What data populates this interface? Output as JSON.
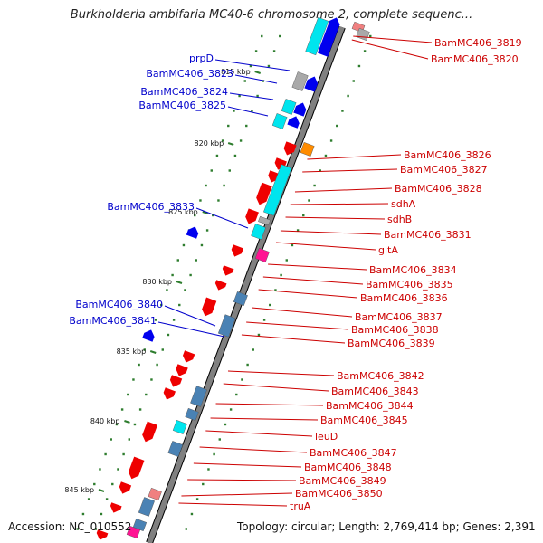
{
  "title": "Burkholderia ambifaria MC40-6 chromosome 2, complete sequenc...",
  "accession": "Accession: NC_010552",
  "topology": "Topology: circular; Length: 2,769,414 bp; Genes: 2,391",
  "colors": {
    "backbone": "#808080",
    "tick": "#2e7d2e",
    "label_left": "#0000cc",
    "label_right": "#cc0000",
    "gene_blue": "#0000ee",
    "gene_red": "#ee0000",
    "gene_cyan": "#00e5ee",
    "gene_steel": "#4a82b4",
    "gene_orange": "#ff8c00",
    "gene_magenta": "#ff1493",
    "gene_grey": "#a9a9a9",
    "gene_pink": "#f08080"
  },
  "kbp_ticks": [
    "815 kbp",
    "820 kbp",
    "825 kbp",
    "830 kbp",
    "835 kbp",
    "840 kbp",
    "845 kbp"
  ],
  "left_labels": [
    "prpD",
    "BamMC406_3823",
    "BamMC406_3824",
    "BamMC406_3825",
    "BamMC406_3833",
    "BamMC406_3840",
    "BamMC406_3841"
  ],
  "right_labels": [
    "BamMC406_3819",
    "BamMC406_3820",
    "BamMC406_3826",
    "BamMC406_3827",
    "BamMC406_3828",
    "sdhA",
    "sdhB",
    "BamMC406_3831",
    "gltA",
    "BamMC406_3834",
    "BamMC406_3835",
    "BamMC406_3836",
    "BamMC406_3837",
    "BamMC406_3838",
    "BamMC406_3839",
    "BamMC406_3842",
    "BamMC406_3843",
    "BamMC406_3844",
    "BamMC406_3845",
    "leuD",
    "BamMC406_3847",
    "BamMC406_3848",
    "BamMC406_3849",
    "BamMC406_3850",
    "truA"
  ]
}
